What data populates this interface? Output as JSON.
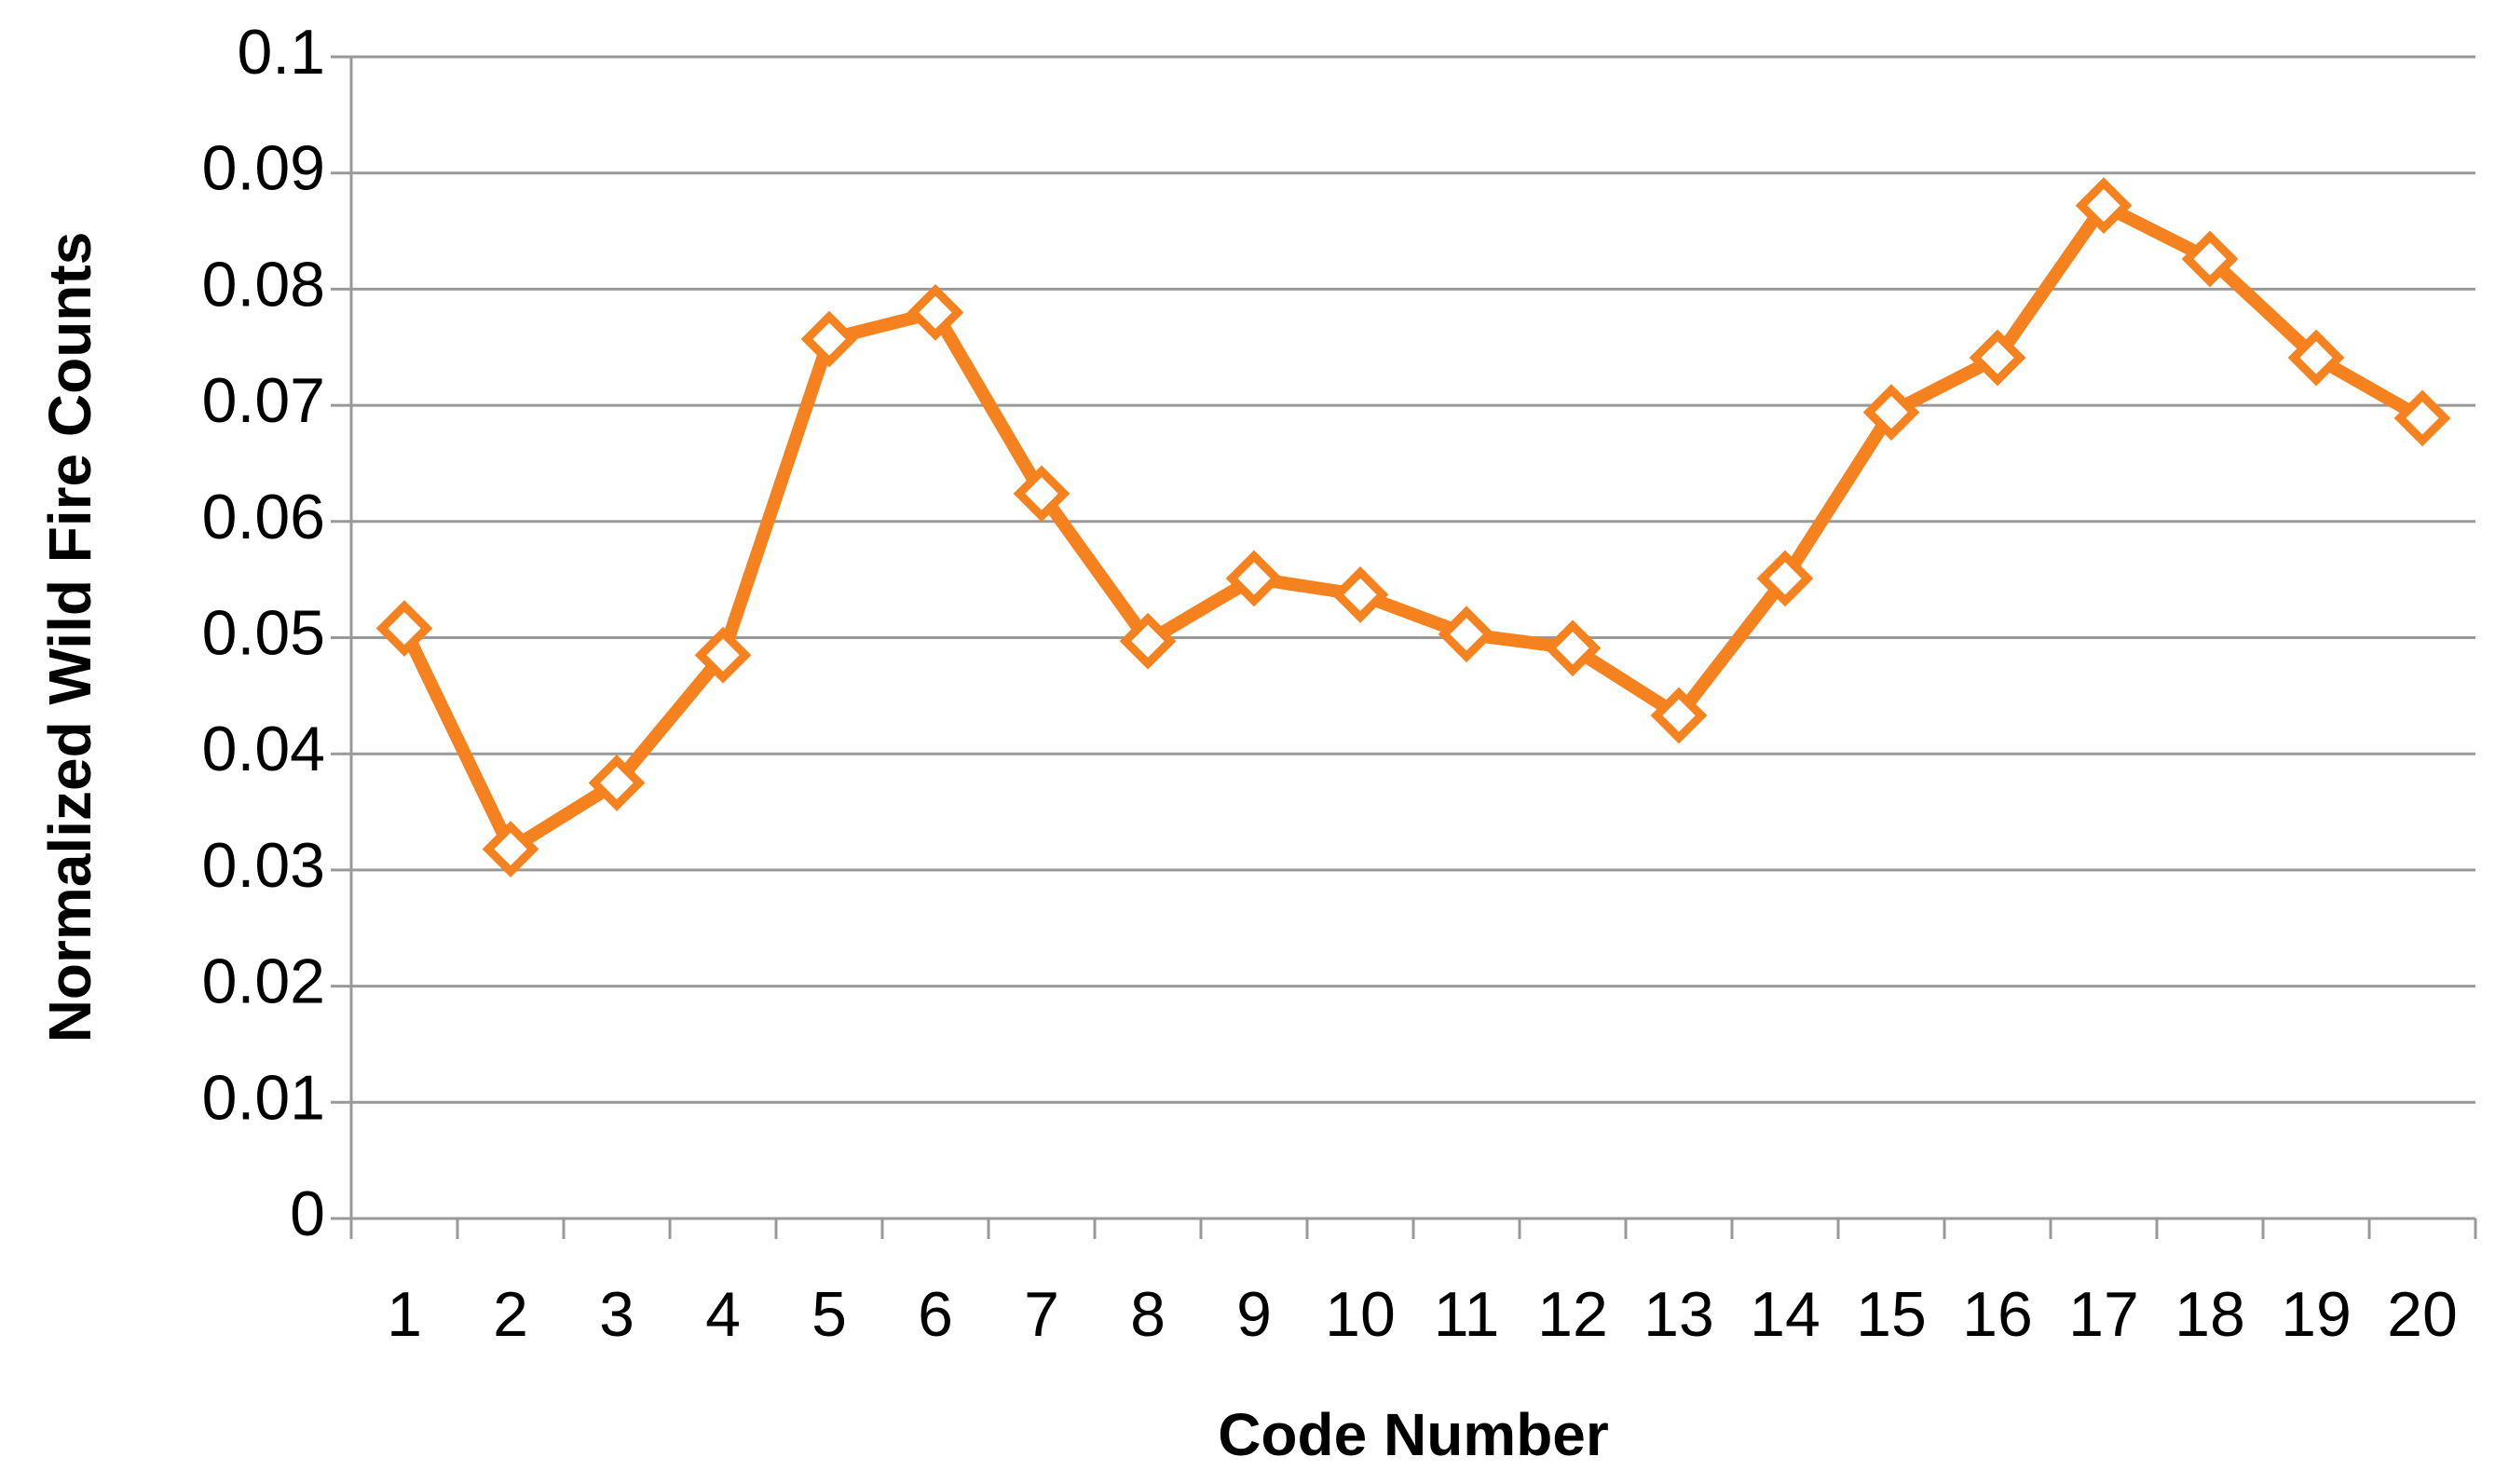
{
  "chart_data": {
    "type": "line",
    "x_label": "Code Number",
    "y_label": "Normalized Wild Fire Counts",
    "categories": [
      "1",
      "2",
      "3",
      "4",
      "5",
      "6",
      "7",
      "8",
      "9",
      "10",
      "11",
      "12",
      "13",
      "14",
      "15",
      "16",
      "17",
      "18",
      "19",
      "20"
    ],
    "series": [
      {
        "color": "#f5821f",
        "values": [
          0.0508,
          0.0318,
          0.0375,
          0.0485,
          0.0757,
          0.078,
          0.0624,
          0.0497,
          0.0551,
          0.0537,
          0.0503,
          0.0491,
          0.0433,
          0.0551,
          0.0694,
          0.0741,
          0.0872,
          0.0826,
          0.0741,
          0.0689
        ]
      }
    ],
    "ylim": [
      0,
      0.1
    ],
    "yticks": [
      0,
      0.01,
      0.02,
      0.03,
      0.04,
      0.05,
      0.06,
      0.07,
      0.08,
      0.09,
      0.1
    ],
    "grid": true
  }
}
